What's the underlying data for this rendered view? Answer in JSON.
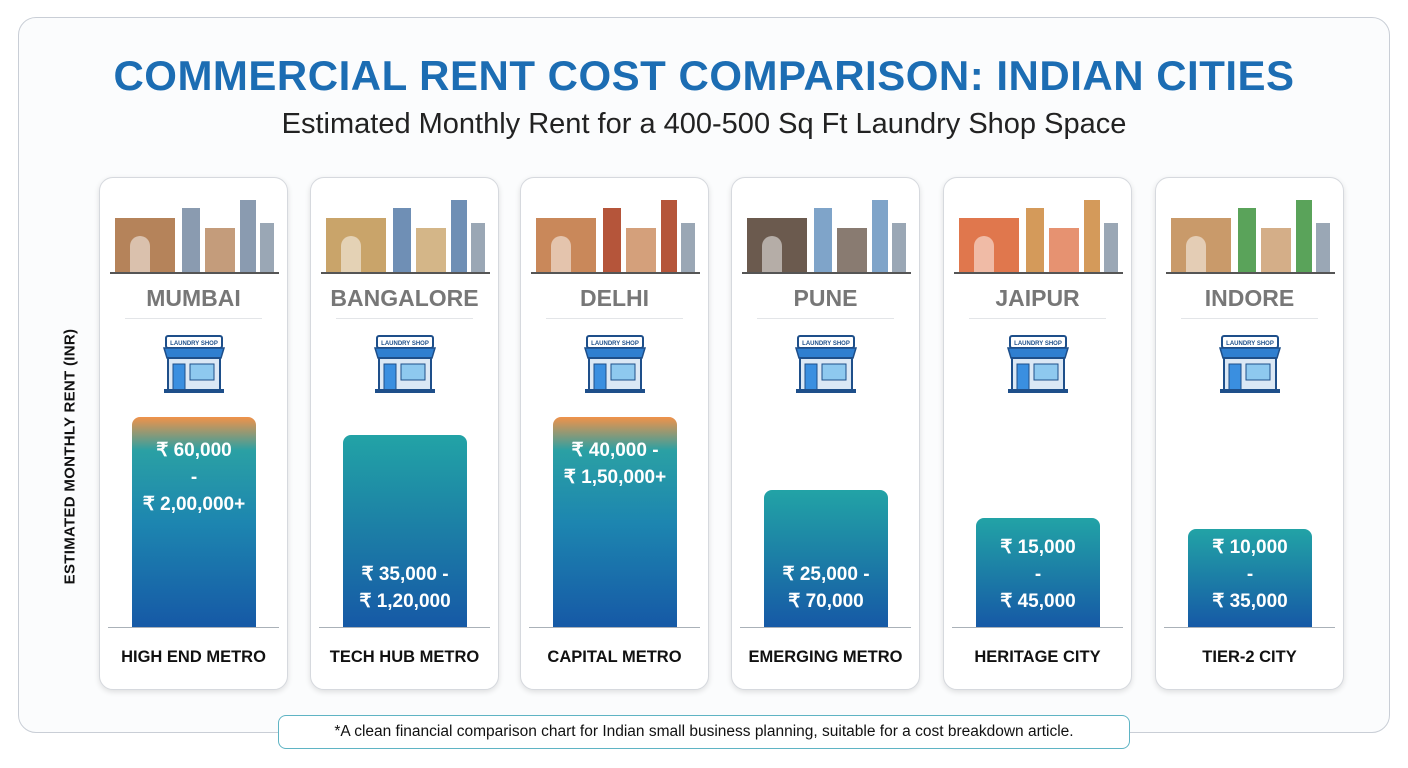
{
  "title": "COMMERCIAL RENT COST COMPARISON: INDIAN CITIES",
  "subtitle": "Estimated Monthly Rent for a 400-500 Sq Ft Laundry Shop Space",
  "footnote": "*A clean financial comparison chart for Indian small business planning, suitable for a cost breakdown article.",
  "colors": {
    "title": "#1c6db3",
    "bar_top_teal": "#22a3a6",
    "bar_bottom_blue": "#1659a6",
    "highlight_orange": "#f0924a"
  },
  "chart_data": {
    "type": "bar",
    "title": "COMMERCIAL RENT COST COMPARISON: INDIAN CITIES",
    "subtitle": "Estimated Monthly Rent for a 400-500 Sq Ft Laundry Shop Space",
    "ylabel": "ESTIMATED MONTHLY RENT (INR)",
    "xlabel": "",
    "grid": false,
    "categories": [
      "MUMBAI",
      "BANGALORE",
      "DELHI",
      "PUNE",
      "JAIPUR",
      "INDORE"
    ],
    "tiers": [
      "HIGH END METRO",
      "TECH HUB METRO",
      "CAPITAL METRO",
      "EMERGING METRO",
      "HERITAGE CITY",
      "TIER-2 CITY"
    ],
    "range_min": [
      60000,
      35000,
      40000,
      25000,
      15000,
      10000
    ],
    "range_max": [
      200000,
      120000,
      150000,
      70000,
      45000,
      35000
    ],
    "labels": [
      [
        "₹ 60,000",
        "-",
        "₹ 2,00,000+"
      ],
      [
        "₹ 35,000 -",
        "₹ 1,20,000"
      ],
      [
        "₹ 40,000 -",
        "₹ 1,50,000+"
      ],
      [
        "₹ 25,000 -",
        "₹ 70,000"
      ],
      [
        "₹ 15,000",
        "-",
        "₹ 45,000"
      ],
      [
        "₹ 10,000",
        "-",
        "₹ 35,000"
      ]
    ],
    "orange_top": [
      true,
      false,
      true,
      false,
      false,
      false
    ],
    "shop_sign": "LAUNDRY SHOP"
  }
}
